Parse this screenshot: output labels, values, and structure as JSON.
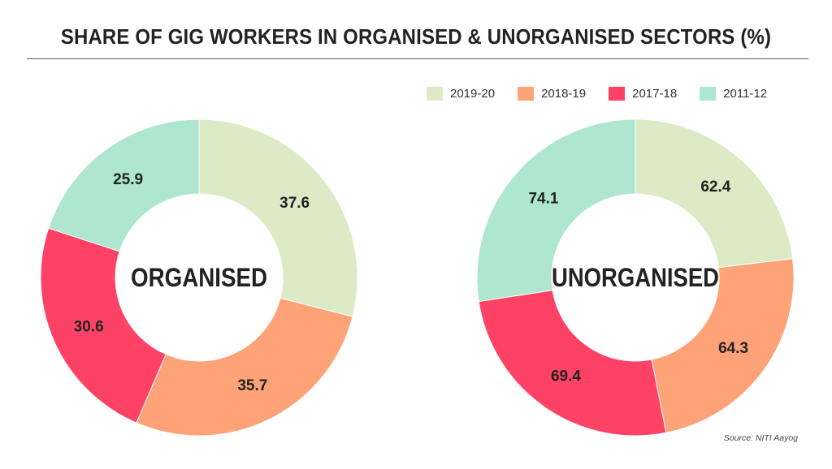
{
  "title": "SHARE OF GIG WORKERS IN ORGANISED & UNORGANISED SECTORS (%)",
  "legend": [
    {
      "label": "2019-20",
      "color": "#dcebc5"
    },
    {
      "label": "2018-19",
      "color": "#fea277"
    },
    {
      "label": "2017-18",
      "color": "#fe4266"
    },
    {
      "label": "2011-12",
      "color": "#aee6cf"
    }
  ],
  "source": "Source: NITI Aayog",
  "chart_data": [
    {
      "type": "pie",
      "variant": "donut",
      "center_label": "ORGANISED",
      "categories": [
        "2019-20",
        "2018-19",
        "2017-18",
        "2011-12"
      ],
      "values": [
        37.6,
        35.7,
        30.6,
        25.9
      ],
      "value_labels": [
        "37.6",
        "35.7",
        "30.6",
        "25.9"
      ],
      "colors": [
        "#dcebc5",
        "#fea277",
        "#fe4266",
        "#aee6cf"
      ],
      "start": "top",
      "direction": "clockwise"
    },
    {
      "type": "pie",
      "variant": "donut",
      "center_label": "UNORGANISED",
      "categories": [
        "2019-20",
        "2018-19",
        "2017-18",
        "2011-12"
      ],
      "values": [
        62.4,
        64.3,
        69.4,
        74.1
      ],
      "value_labels": [
        "62.4",
        "64.3",
        "69.4",
        "74.1"
      ],
      "colors": [
        "#dcebc5",
        "#fea277",
        "#fe4266",
        "#aee6cf"
      ],
      "start": "top",
      "direction": "clockwise"
    }
  ]
}
